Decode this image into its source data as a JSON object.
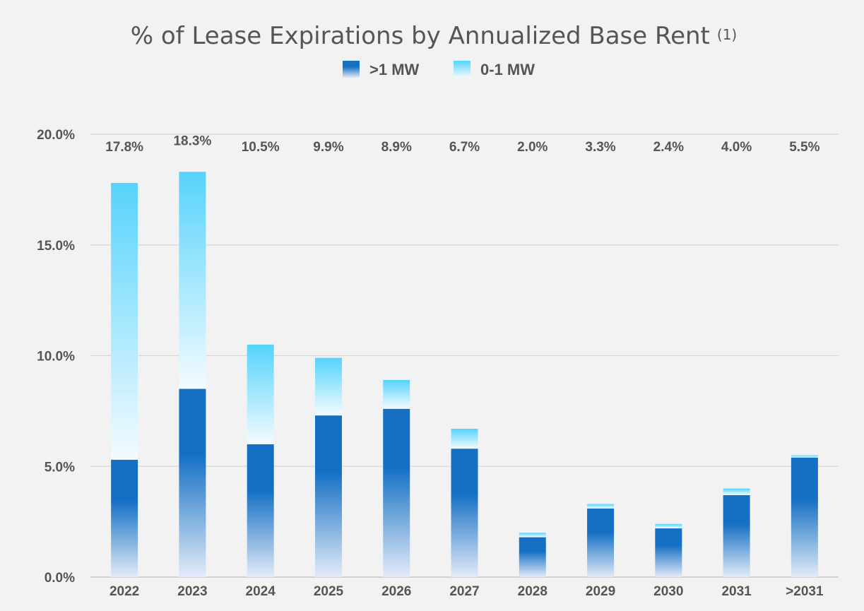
{
  "chart_data": {
    "type": "bar",
    "stacked": true,
    "title": "% of Lease Expirations by Annualized Base Rent",
    "title_footnote": "(1)",
    "categories": [
      "2022",
      "2023",
      "2024",
      "2025",
      "2026",
      "2027",
      "2028",
      "2029",
      "2030",
      "2031",
      ">2031"
    ],
    "series": [
      {
        "name": ">1 MW",
        "color": "#1570c4",
        "values": [
          5.3,
          8.5,
          6.0,
          7.3,
          7.6,
          5.8,
          1.8,
          3.1,
          2.2,
          3.7,
          5.4
        ]
      },
      {
        "name": "0-1 MW",
        "color": "#5fd5fb",
        "values": [
          12.5,
          9.8,
          4.5,
          2.6,
          1.3,
          0.9,
          0.2,
          0.2,
          0.2,
          0.3,
          0.1
        ]
      }
    ],
    "totals": [
      17.8,
      18.3,
      10.5,
      9.9,
      8.9,
      6.7,
      2.0,
      3.3,
      2.4,
      4.0,
      5.5
    ],
    "total_labels": [
      "17.8%",
      "18.3%",
      "10.5%",
      "9.9%",
      "8.9%",
      "6.7%",
      "2.0%",
      "3.3%",
      "2.4%",
      "4.0%",
      "5.5%"
    ],
    "ylim": [
      0,
      20
    ],
    "yticks": [
      0,
      5,
      10,
      15,
      20
    ],
    "ytick_labels": [
      "0.0%",
      "5.0%",
      "10.0%",
      "15.0%",
      "20.0%"
    ],
    "xlabel": "",
    "ylabel": "",
    "grid": true,
    "legend_position": "top-center"
  }
}
